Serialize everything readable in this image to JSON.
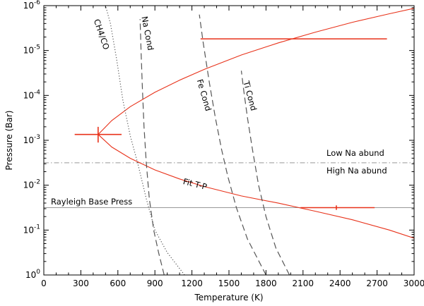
{
  "chart_data": {
    "type": "line",
    "title": "",
    "xlabel": "Temperature (K)",
    "ylabel": "Pressure (Bar)",
    "xlim": [
      0,
      3000
    ],
    "ylim_log10": [
      0,
      -6
    ],
    "y_scale": "log, inverted (high pressure at bottom)",
    "grid": false,
    "x_ticks": [
      0,
      300,
      600,
      900,
      1200,
      1500,
      1800,
      2100,
      2400,
      2700,
      3000
    ],
    "x_tick_labels": [
      "0",
      "300",
      "600",
      "900",
      "1200",
      "1500",
      "1800",
      "2100",
      "2400",
      "2700",
      "3000"
    ],
    "y_ticks_log10": [
      0,
      -1,
      -2,
      -3,
      -4,
      -5,
      -6
    ],
    "y_tick_labels": [
      {
        "base": "10",
        "exp": "0"
      },
      {
        "base": "10",
        "exp": "-1"
      },
      {
        "base": "10",
        "exp": "-2"
      },
      {
        "base": "10",
        "exp": "-3"
      },
      {
        "base": "10",
        "exp": "-4"
      },
      {
        "base": "10",
        "exp": "-5"
      },
      {
        "base": "10",
        "exp": "-6"
      }
    ],
    "colors": {
      "fit": "#e8321a",
      "condensation": "#555555",
      "reference": "#999999",
      "axis": "#000000"
    },
    "series": [
      {
        "label": "Fit T-P",
        "style": "solid",
        "color": "#e8321a",
        "points": [
          {
            "x": 3000,
            "logP": -0.82
          },
          {
            "x": 2800,
            "logP": -1.0
          },
          {
            "x": 2500,
            "logP": -1.23
          },
          {
            "x": 2200,
            "logP": -1.42
          },
          {
            "x": 1900,
            "logP": -1.6
          },
          {
            "x": 1600,
            "logP": -1.76
          },
          {
            "x": 1300,
            "logP": -1.97
          },
          {
            "x": 1100,
            "logP": -2.14
          },
          {
            "x": 900,
            "logP": -2.34
          },
          {
            "x": 700,
            "logP": -2.6
          },
          {
            "x": 550,
            "logP": -2.85
          },
          {
            "x": 440,
            "logP": -3.13
          },
          {
            "x": 550,
            "logP": -3.44
          },
          {
            "x": 700,
            "logP": -3.75
          },
          {
            "x": 900,
            "logP": -4.07
          },
          {
            "x": 1100,
            "logP": -4.34
          },
          {
            "x": 1300,
            "logP": -4.58
          },
          {
            "x": 1600,
            "logP": -4.9
          },
          {
            "x": 1900,
            "logP": -5.17
          },
          {
            "x": 2200,
            "logP": -5.41
          },
          {
            "x": 2500,
            "logP": -5.63
          },
          {
            "x": 2800,
            "logP": -5.82
          },
          {
            "x": 3000,
            "logP": -5.94
          }
        ]
      },
      {
        "label": "Na Cond",
        "style": "dashed",
        "color": "#555555",
        "points": [
          {
            "x": 975,
            "logP": 0
          },
          {
            "x": 930,
            "logP": -0.5
          },
          {
            "x": 890,
            "logP": -1.0
          },
          {
            "x": 855,
            "logP": -1.7
          },
          {
            "x": 830,
            "logP": -2.5
          },
          {
            "x": 812,
            "logP": -3.3
          },
          {
            "x": 798,
            "logP": -4.2
          },
          {
            "x": 788,
            "logP": -5.0
          },
          {
            "x": 780,
            "logP": -5.7
          }
        ]
      },
      {
        "label": "Fe Cond",
        "style": "dashed",
        "color": "#555555",
        "points": [
          {
            "x": 1800,
            "logP": 0
          },
          {
            "x": 1650,
            "logP": -0.8
          },
          {
            "x": 1560,
            "logP": -1.5
          },
          {
            "x": 1490,
            "logP": -2.2
          },
          {
            "x": 1440,
            "logP": -2.8
          },
          {
            "x": 1390,
            "logP": -3.5
          },
          {
            "x": 1340,
            "logP": -4.3
          },
          {
            "x": 1290,
            "logP": -5.2
          },
          {
            "x": 1260,
            "logP": -5.8
          }
        ]
      },
      {
        "label": "Ti Cond",
        "style": "dashed",
        "color": "#555555",
        "points": [
          {
            "x": 1990,
            "logP": 0
          },
          {
            "x": 1880,
            "logP": -0.6
          },
          {
            "x": 1800,
            "logP": -1.3
          },
          {
            "x": 1740,
            "logP": -2.0
          },
          {
            "x": 1690,
            "logP": -2.8
          },
          {
            "x": 1650,
            "logP": -3.5
          },
          {
            "x": 1620,
            "logP": -4.1
          },
          {
            "x": 1600,
            "logP": -4.55
          }
        ]
      },
      {
        "label": "CH4/CO",
        "style": "dotted",
        "color": "#555555",
        "points": [
          {
            "x": 1140,
            "logP": 0
          },
          {
            "x": 1000,
            "logP": -0.5
          },
          {
            "x": 900,
            "logP": -1.0
          },
          {
            "x": 830,
            "logP": -1.7
          },
          {
            "x": 760,
            "logP": -2.5
          },
          {
            "x": 700,
            "logP": -3.1
          },
          {
            "x": 640,
            "logP": -3.9
          },
          {
            "x": 590,
            "logP": -4.8
          },
          {
            "x": 540,
            "logP": -5.6
          },
          {
            "x": 500,
            "logP": -6.0
          }
        ]
      }
    ],
    "reference_lines": [
      {
        "label": "Rayleigh Base Press",
        "logP": -1.5,
        "style": "solid"
      },
      {
        "label_above": "Low Na abund",
        "label_below": "High Na abund",
        "logP": -2.5,
        "style": "dash-dot"
      }
    ],
    "error_bars": [
      {
        "x": 440,
        "logP": -3.13,
        "x_range": [
          250,
          630
        ],
        "logP_range": [
          -2.95,
          -3.3
        ]
      },
      {
        "x": 2370,
        "logP": -1.5,
        "x_range": [
          2080,
          2680
        ],
        "logP_range": [
          -1.45,
          -1.55
        ]
      },
      {
        "x": 2020,
        "logP": -5.26,
        "x_range": [
          1270,
          2780
        ],
        "logP_range": [
          -5.26,
          -5.26
        ]
      }
    ],
    "annotations": [
      "CH4/CO",
      "Na Cond",
      "Fe Cond",
      "Ti Cond",
      "Fit T-P",
      "Low Na abund",
      "High Na abund",
      "Rayleigh Base Press"
    ]
  }
}
